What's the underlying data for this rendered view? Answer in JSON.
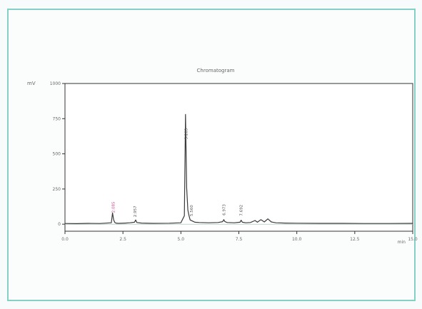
{
  "colors": {
    "frame": "#86cfc7",
    "axis": "#333333",
    "trace": "#3a3a3a",
    "peak_label": "#555555",
    "peak_label_accent": "#cc4a8a"
  },
  "chart_data": {
    "type": "line",
    "title": "Chromatogram",
    "ylabel": "mV",
    "xlabel": "",
    "x_unit_label": "min",
    "xlim": [
      0,
      15
    ],
    "ylim": [
      -50,
      1000
    ],
    "xticks": [
      0.0,
      2.5,
      5.0,
      7.5,
      10.0,
      12.5,
      15.0
    ],
    "xtick_labels": [
      "0.0",
      "2.5",
      "5.0",
      "7.5",
      "10.0",
      "12.5",
      "15.0"
    ],
    "yticks": [
      0,
      250,
      500,
      750,
      1000
    ],
    "ytick_labels": [
      "0",
      "250",
      "500",
      "750",
      "1000"
    ],
    "grid": false,
    "series": [
      {
        "x": [
          0,
          0.5,
          1.0,
          1.5,
          2.0,
          2.05,
          2.1,
          2.15,
          2.2,
          2.3,
          2.6,
          2.8,
          3.0,
          3.05,
          3.1,
          3.3,
          3.8,
          4.5,
          5.0,
          5.15,
          5.2,
          5.25,
          5.3,
          5.35,
          5.4,
          5.5,
          5.6,
          5.8,
          6.2,
          6.6,
          6.8,
          6.85,
          6.9,
          7.0,
          7.3,
          7.55,
          7.6,
          7.65,
          7.8,
          8.0,
          8.2,
          8.3,
          8.45,
          8.6,
          8.75,
          8.9,
          9.1,
          9.5,
          10.0,
          11.0,
          12.0,
          13.0,
          14.0,
          15.0
        ],
        "y": [
          5,
          4,
          6,
          5,
          10,
          80,
          30,
          12,
          8,
          6,
          8,
          10,
          14,
          30,
          12,
          8,
          6,
          7,
          10,
          60,
          780,
          260,
          100,
          60,
          30,
          22,
          14,
          12,
          10,
          12,
          18,
          32,
          18,
          12,
          10,
          14,
          28,
          14,
          10,
          12,
          26,
          14,
          32,
          16,
          38,
          16,
          10,
          8,
          7,
          6,
          6,
          5,
          5,
          6
        ]
      }
    ],
    "peak_labels": [
      {
        "x": 2.08,
        "text": "2.085"
      },
      {
        "x": 3.02,
        "text": "2.957"
      },
      {
        "x": 5.22,
        "text": "5.283"
      },
      {
        "x": 5.45,
        "text": "5.560"
      },
      {
        "x": 6.85,
        "text": "6.973"
      },
      {
        "x": 7.6,
        "text": "7.692"
      }
    ]
  }
}
